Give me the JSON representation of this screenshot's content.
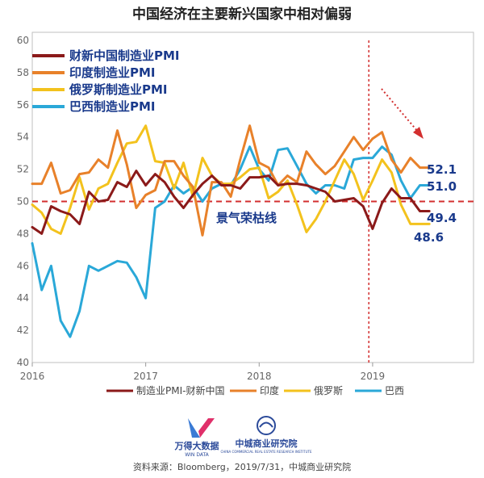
{
  "chart_data": {
    "type": "line",
    "title": "中国经济在主要新兴国家中相对偏弱",
    "ylim": [
      40,
      60
    ],
    "yticks": [
      40,
      42,
      44,
      46,
      48,
      50,
      52,
      54,
      56,
      58,
      60
    ],
    "xticks": [
      "2016",
      "2017",
      "2018",
      "2019"
    ],
    "xtick_index": [
      0,
      12,
      24,
      36
    ],
    "x_count": 43,
    "grid": false,
    "threshold": {
      "value": 50,
      "label": "景气荣枯线",
      "color": "#d32f2f"
    },
    "vline_index": 35.6,
    "legend_inside": [
      "财新中国制造业PMI",
      "印度制造业PMI",
      "俄罗斯制造业PMI",
      "巴西制造业PMI"
    ],
    "legend_bottom": [
      "制造业PMI-财新中国",
      "印度",
      "俄罗斯",
      "巴西"
    ],
    "series": [
      {
        "name": "财新中国制造业PMI",
        "color": "#8b1a1a",
        "values": [
          48.4,
          48.0,
          49.7,
          49.4,
          49.2,
          48.6,
          50.6,
          50.0,
          50.1,
          51.2,
          50.9,
          51.9,
          51.0,
          51.7,
          51.2,
          50.3,
          49.6,
          50.4,
          51.1,
          51.6,
          51.0,
          51.0,
          50.8,
          51.5,
          51.5,
          51.6,
          51.0,
          51.1,
          51.1,
          51.0,
          50.8,
          50.6,
          50.0,
          50.1,
          50.2,
          49.7,
          48.3,
          49.9,
          50.8,
          50.2,
          50.2,
          49.4,
          49.4
        ]
      },
      {
        "name": "印度制造业PMI",
        "color": "#e8812a",
        "values": [
          51.1,
          51.1,
          52.4,
          50.5,
          50.7,
          51.7,
          51.8,
          52.6,
          52.1,
          54.4,
          52.3,
          49.6,
          50.4,
          50.7,
          52.5,
          52.5,
          51.6,
          50.9,
          47.9,
          51.2,
          51.2,
          50.3,
          52.6,
          54.7,
          52.4,
          52.1,
          51.0,
          51.6,
          51.2,
          53.1,
          52.3,
          51.7,
          52.2,
          53.1,
          54.0,
          53.2,
          53.9,
          54.3,
          52.6,
          51.8,
          52.7,
          52.1,
          52.1
        ]
      },
      {
        "name": "俄罗斯制造业PMI",
        "color": "#f3c21d",
        "values": [
          49.8,
          49.3,
          48.3,
          48.0,
          49.6,
          51.5,
          49.5,
          50.8,
          51.1,
          52.4,
          53.6,
          53.7,
          54.7,
          52.5,
          52.4,
          50.8,
          52.4,
          50.3,
          52.7,
          51.6,
          51.1,
          51.1,
          51.5,
          52.0,
          52.1,
          50.2,
          50.6,
          51.3,
          49.8,
          48.1,
          48.9,
          50.0,
          51.3,
          52.6,
          51.7,
          50.1,
          51.3,
          52.6,
          51.8,
          49.8,
          48.6,
          48.6,
          48.6
        ]
      },
      {
        "name": "巴西制造业PMI",
        "color": "#2aa8d8",
        "values": [
          47.4,
          44.5,
          46.0,
          42.6,
          41.6,
          43.2,
          46.0,
          45.7,
          46.0,
          46.3,
          46.2,
          45.3,
          44.0,
          49.6,
          50.0,
          51.0,
          50.5,
          50.9,
          50.0,
          50.8,
          51.1,
          51.0,
          52.0,
          53.4,
          52.0,
          51.3,
          53.2,
          53.3,
          52.2,
          51.1,
          50.5,
          51.0,
          51.0,
          50.8,
          52.6,
          52.7,
          52.7,
          53.4,
          52.9,
          51.3,
          50.2,
          51.0,
          51.0
        ]
      }
    ],
    "end_labels": [
      {
        "text": "52.1",
        "value": 52.1
      },
      {
        "text": "51.0",
        "value": 51.0
      },
      {
        "text": "49.4",
        "value": 49.4
      },
      {
        "text": "48.6",
        "value": 48.6
      }
    ]
  },
  "footer": {
    "logo_left": "万得大数据",
    "logo_left_sub": "WIN DATA",
    "logo_right": "中城商业研究院",
    "logo_right_sub": "CHINA COMMERCIAL REAL ESTATE RESEARCH INSTITUTE",
    "source": "资料来源：Bloomberg，2019/7/31，中城商业研究院"
  },
  "colors": {
    "threshold": "#d32f2f",
    "label_text": "#1a3a8c"
  }
}
